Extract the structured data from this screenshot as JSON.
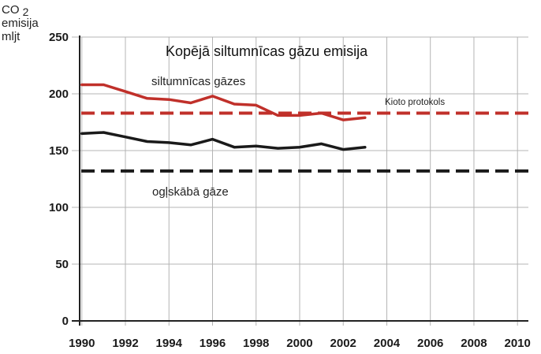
{
  "chart_data": {
    "type": "line",
    "title": "Kopējā siltumnīcas gāzu emisija",
    "ylabel": {
      "line1": "CO",
      "sub": "2",
      "line2": "emisija",
      "line3": "mljt"
    },
    "x": [
      1990,
      1991,
      1992,
      1993,
      1994,
      1995,
      1996,
      1997,
      1998,
      1999,
      2000,
      2001,
      2002,
      2003
    ],
    "xlim": [
      1989.9,
      2010.5
    ],
    "ylim": [
      0,
      250
    ],
    "xticks": [
      1990,
      1992,
      1994,
      1996,
      1998,
      2000,
      2002,
      2004,
      2006,
      2008,
      2010
    ],
    "yticks": [
      0,
      50,
      100,
      150,
      200,
      250
    ],
    "grid": true,
    "series": [
      {
        "name": "siltumnīcas gāzes",
        "color": "#c0302a",
        "values": [
          208,
          208,
          202,
          196,
          195,
          192,
          198,
          191,
          190,
          181,
          181,
          183,
          177,
          179
        ]
      },
      {
        "name": "ogļskābā gāze",
        "color": "#1a1a1a",
        "values": [
          165,
          166,
          162,
          158,
          157,
          155,
          160,
          153,
          154,
          152,
          153,
          156,
          151,
          153
        ]
      }
    ],
    "reference_lines": [
      {
        "label": "Kioto protokols",
        "value": 183,
        "color": "#c0302a"
      },
      {
        "label": "",
        "value": 132,
        "color": "#1a1a1a"
      }
    ]
  }
}
